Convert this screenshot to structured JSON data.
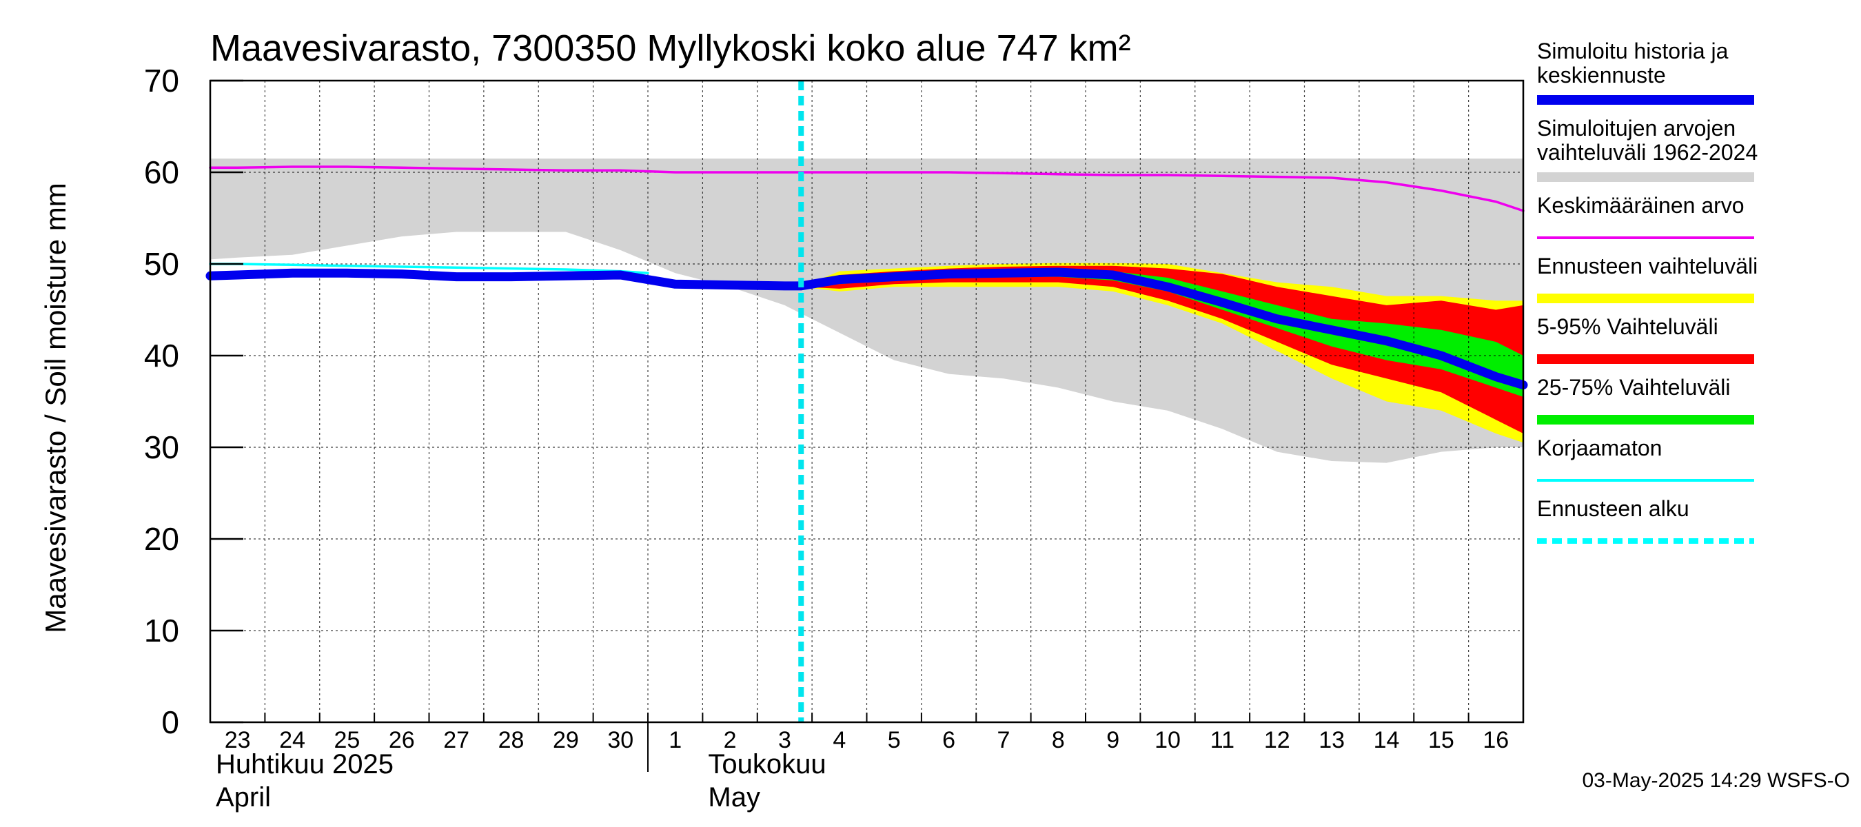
{
  "chart_data": {
    "type": "area",
    "title": "Maavesivarasto, 7300350 Myllykoski koko alue 747 km²",
    "ylabel": "Maavesivarasto / Soil moisture   mm",
    "ylim": [
      0,
      70
    ],
    "yticks": [
      0,
      10,
      20,
      30,
      40,
      50,
      60,
      70
    ],
    "x_range": [
      -0.5,
      23.5
    ],
    "x_days": [
      "23",
      "24",
      "25",
      "26",
      "27",
      "28",
      "29",
      "30",
      "1",
      "2",
      "3",
      "4",
      "5",
      "6",
      "7",
      "8",
      "9",
      "10",
      "11",
      "12",
      "13",
      "14",
      "15",
      "16"
    ],
    "month_labels": [
      {
        "fi": "Huhtikuu  2025",
        "en": "April",
        "start_index": 0
      },
      {
        "fi": "Toukokuu",
        "en": "May",
        "start_index": 9
      }
    ],
    "month_separator_index": 8,
    "forecast_start_index": 10.3,
    "grid": true,
    "legend_position": "right",
    "series": [
      {
        "name": "Simuloitujen arvojen vaihteluväli 1962-2024",
        "kind": "band",
        "color": "#d3d3d3",
        "x": [
          -0.5,
          0,
          1,
          2,
          3,
          4,
          5,
          6,
          7,
          8,
          9,
          10,
          11,
          12,
          13,
          14,
          15,
          16,
          17,
          18,
          19,
          20,
          21,
          22,
          23,
          23.5
        ],
        "upper": [
          61.5,
          61.5,
          61.5,
          61.5,
          61.5,
          61.5,
          61.5,
          61.5,
          61.5,
          61.5,
          61.5,
          61.5,
          61.5,
          61.5,
          61.5,
          61.5,
          61.5,
          61.5,
          61.5,
          61.5,
          61.5,
          61.5,
          61.5,
          61.5,
          61.5,
          61.5
        ],
        "lower": [
          50.5,
          50.7,
          51,
          52,
          53,
          53.5,
          53.5,
          53.5,
          51.5,
          49,
          47.5,
          45.5,
          42.5,
          39.5,
          38,
          37.5,
          36.5,
          35,
          34,
          32,
          29.5,
          28.5,
          28.3,
          29.5,
          30,
          30
        ]
      },
      {
        "name": "Ennusteen vaihteluväli",
        "kind": "band",
        "color": "#ffff00",
        "x": [
          10.3,
          11,
          12,
          13,
          14,
          15,
          16,
          17,
          18,
          19,
          20,
          21,
          22,
          23,
          23.5
        ],
        "upper": [
          47.5,
          49.2,
          49.5,
          49.8,
          50,
          50.1,
          50.1,
          50,
          49,
          48,
          47.5,
          46.5,
          46.5,
          46,
          46
        ],
        "lower": [
          47.5,
          47,
          47.5,
          47.5,
          47.5,
          47.5,
          47,
          45.5,
          43.5,
          40.5,
          37.5,
          35,
          34,
          31.5,
          30.5
        ]
      },
      {
        "name": "5-95% Vaihteluväli",
        "kind": "band",
        "color": "#ff0000",
        "x": [
          10.3,
          11,
          12,
          13,
          14,
          15,
          16,
          17,
          18,
          19,
          20,
          21,
          22,
          23,
          23.5
        ],
        "upper": [
          47.5,
          48.8,
          49.2,
          49.5,
          49.7,
          49.8,
          49.8,
          49.5,
          48.9,
          47.5,
          46.5,
          45.5,
          46,
          45,
          45.5
        ],
        "lower": [
          47.5,
          47.3,
          47.8,
          48,
          48,
          48,
          47.5,
          46,
          44,
          41.5,
          39,
          37.5,
          36,
          33,
          31.5
        ]
      },
      {
        "name": "25-75% Vaihteluväli",
        "kind": "band",
        "color": "#00ee00",
        "x": [
          10.3,
          11,
          12,
          13,
          14,
          15,
          16,
          17,
          18,
          19,
          20,
          21,
          22,
          23,
          23.5
        ],
        "upper": [
          47.5,
          48.4,
          48.8,
          49.1,
          49.3,
          49.4,
          49.2,
          48.5,
          47,
          45.5,
          44,
          43.5,
          42.8,
          41.5,
          40
        ],
        "lower": [
          47.5,
          47.8,
          48.2,
          48.5,
          48.6,
          48.6,
          48.2,
          47,
          45,
          43,
          41,
          39.5,
          38.5,
          36.5,
          35.5
        ]
      },
      {
        "name": "Keskimääräinen arvo",
        "kind": "line",
        "color": "#ee00ee",
        "x": [
          -0.5,
          0,
          1,
          2,
          3,
          4,
          5,
          6,
          7,
          8,
          9,
          10,
          11,
          12,
          13,
          14,
          15,
          16,
          17,
          18,
          19,
          20,
          21,
          22,
          23,
          23.5
        ],
        "y": [
          60.5,
          60.5,
          60.6,
          60.6,
          60.5,
          60.4,
          60.3,
          60.2,
          60.2,
          60,
          60,
          60,
          60,
          60,
          60,
          59.9,
          59.8,
          59.7,
          59.7,
          59.6,
          59.5,
          59.4,
          58.9,
          58,
          56.8,
          55.8
        ]
      },
      {
        "name": "Korjaamaton",
        "kind": "line",
        "color": "#00ffff",
        "x": [
          -0.5,
          0,
          1,
          2,
          3,
          4,
          5,
          6,
          7,
          7.5
        ],
        "y": [
          50,
          50,
          49.9,
          49.8,
          49.7,
          49.6,
          49.5,
          49.4,
          49.2,
          49
        ]
      },
      {
        "name": "Simuloitu historia ja keskiennuste",
        "kind": "line",
        "color": "#0000ee",
        "x": [
          -0.5,
          0,
          1,
          2,
          3,
          4,
          5,
          6,
          7,
          8,
          9,
          10,
          10.3,
          11,
          12,
          13,
          14,
          15,
          16,
          17,
          18,
          19,
          20,
          21,
          22,
          23,
          23.5
        ],
        "y": [
          48.7,
          48.8,
          49,
          49,
          48.9,
          48.6,
          48.6,
          48.7,
          48.8,
          47.8,
          47.7,
          47.6,
          47.6,
          48.3,
          48.6,
          48.9,
          49,
          49.1,
          48.8,
          47.5,
          45.8,
          44,
          42.8,
          41.6,
          40,
          37.7,
          36.8
        ]
      }
    ],
    "legend": [
      {
        "label": "Simuloitu historia ja",
        "label2": "keskiennuste",
        "color": "#0000ee",
        "style": "thick"
      },
      {
        "label": "Simuloitujen arvojen",
        "label2": "vaihteluväli 1962-2024",
        "color": "#d3d3d3",
        "style": "band"
      },
      {
        "label": "Keskimääräinen arvo",
        "label2": "",
        "color": "#ee00ee",
        "style": "thin"
      },
      {
        "label": "Ennusteen vaihteluväli",
        "label2": "",
        "color": "#ffff00",
        "style": "band"
      },
      {
        "label": "5-95% Vaihteluväli",
        "label2": "",
        "color": "#ff0000",
        "style": "band"
      },
      {
        "label": "25-75% Vaihteluväli",
        "label2": "",
        "color": "#00ee00",
        "style": "band"
      },
      {
        "label": "Korjaamaton",
        "label2": "",
        "color": "#00ffff",
        "style": "thin"
      },
      {
        "label": "Ennusteen alku",
        "label2": "",
        "color": "#00ffff",
        "style": "dashed"
      }
    ],
    "footer": "03-May-2025 14:29 WSFS-O"
  }
}
